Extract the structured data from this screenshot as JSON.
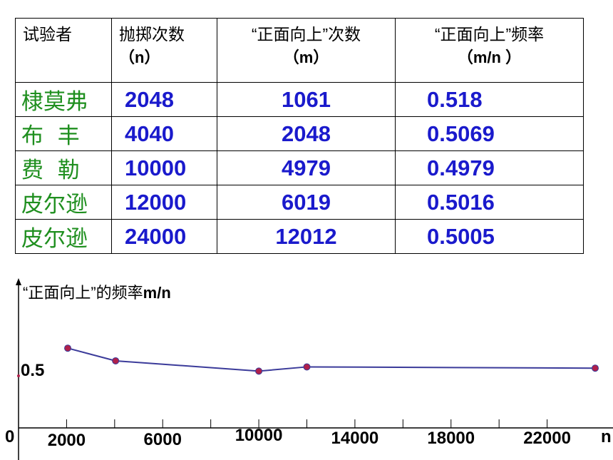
{
  "table": {
    "headers": [
      {
        "line1": "试验者",
        "line2": ""
      },
      {
        "line1": "抛掷次数",
        "line2": "（n）"
      },
      {
        "line1": "“正面向上”次数",
        "line2": "（m）"
      },
      {
        "line1": "“正面向上”频率",
        "line2": "（m/n ）"
      }
    ],
    "rows": [
      {
        "name": "棣莫弗",
        "n": "2048",
        "m": "1061",
        "freq": "0.518"
      },
      {
        "name": "布  丰",
        "n": "4040",
        "m": "2048",
        "freq": "0.5069"
      },
      {
        "name": "费  勒",
        "n": "10000",
        "m": "4979",
        "freq": "0.4979"
      },
      {
        "name": "皮尔逊",
        "n": "12000",
        "m": "6019",
        "freq": "0.5016"
      },
      {
        "name": "皮尔逊",
        "n": "24000",
        "m": "12012",
        "freq": "0.5005"
      }
    ]
  },
  "chart_data": {
    "type": "line",
    "ylabel": "“正面向上”的频率m/n",
    "xlabel": "n",
    "origin_label": "0",
    "y_reference_label": "0.5",
    "y_reference_value": 0.5,
    "x_tick_labels": [
      "2000",
      "6000",
      "10000",
      "14000",
      "18000",
      "22000"
    ],
    "x_tick_values": [
      2000,
      6000,
      10000,
      14000,
      18000,
      22000
    ],
    "x_ticks_unlabeled": [
      4000,
      8000,
      12000,
      16000,
      20000
    ],
    "xlim": [
      0,
      24500
    ],
    "series": [
      {
        "x": [
          2048,
          4040,
          10000,
          12000,
          24000
        ],
        "y": [
          0.518,
          0.5069,
          0.4979,
          0.5016,
          0.5005
        ]
      }
    ],
    "colors": {
      "line": "#3b3b9a",
      "marker": "#b0204a",
      "axis": "#000000"
    }
  }
}
